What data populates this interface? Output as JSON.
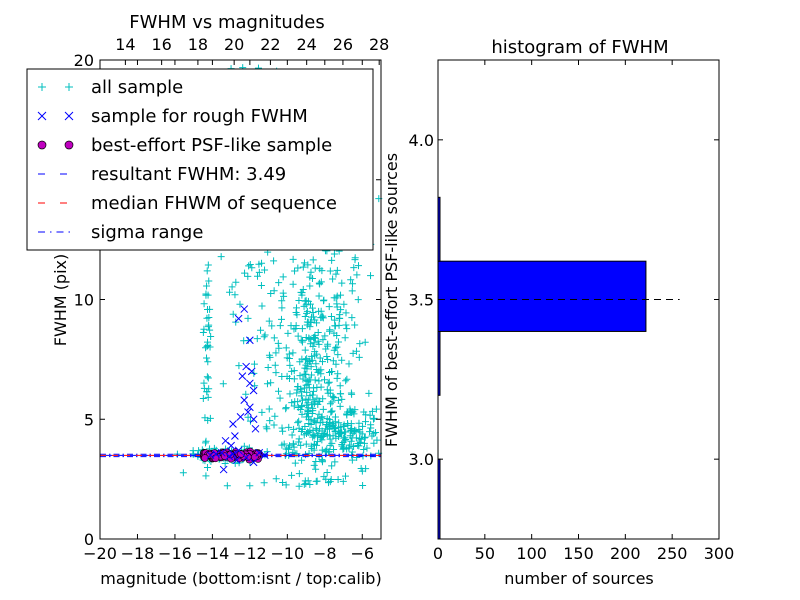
{
  "chart_data": [
    {
      "type": "scatter",
      "title": "FWHM vs magnitudes",
      "xlabel": "magnitude (bottom:isnt / top:calib)",
      "ylabel": "FWHM (pix)",
      "xlim": [
        -20,
        -5
      ],
      "ylim": [
        0,
        20
      ],
      "xticks": [
        -20,
        -18,
        -16,
        -14,
        -12,
        -10,
        -8,
        -6
      ],
      "xtick_labels": [
        "−20",
        "−18",
        "−16",
        "−14",
        "−12",
        "−10",
        "−8",
        "−6"
      ],
      "yticks": [
        0,
        5,
        10,
        15,
        20
      ],
      "ytick_labels": [
        "0",
        "5",
        "10",
        "15",
        "20"
      ],
      "top_xlim": [
        12.6,
        28.1
      ],
      "top_xticks": [
        14,
        16,
        18,
        20,
        22,
        24,
        26,
        28
      ],
      "top_xtick_labels": [
        "14",
        "16",
        "18",
        "20",
        "22",
        "24",
        "26",
        "28"
      ],
      "legend_position": "top-left",
      "legend": [
        {
          "label": "all sample",
          "marker": "plus",
          "color": "#00bfbf"
        },
        {
          "label": "sample for rough FWHM",
          "marker": "x",
          "color": "#0000ff"
        },
        {
          "label": "best-effort PSF-like sample",
          "marker": "circle",
          "color": "#bf00bf"
        },
        {
          "label": "resultant FWHM: 3.49",
          "marker": "dashed",
          "color": "#0000ff"
        },
        {
          "label": "median FHWM of sequence",
          "marker": "dashed",
          "color": "#ff0000"
        },
        {
          "label": "sigma range",
          "marker": "dashdot",
          "color": "#0000ff"
        }
      ],
      "lines": {
        "resultant_fwhm": 3.49,
        "median_fwhm": 3.49,
        "sigma_range": [
          3.44,
          3.54
        ]
      },
      "series": {
        "all_sample_clusters": [
          {
            "x_center": -8.7,
            "x_sd": 1.1,
            "y_center": 6.8,
            "y_sd": 2.6,
            "count": 320
          },
          {
            "x_center": -8.3,
            "x_sd": 1.3,
            "y_center": 11.5,
            "y_sd": 3.5,
            "count": 130
          },
          {
            "x_center": -7.2,
            "x_sd": 1.2,
            "y_center": 4.4,
            "y_sd": 0.7,
            "count": 170
          },
          {
            "x_center": -13.3,
            "x_sd": 0.9,
            "y_center": 3.5,
            "y_sd": 0.12,
            "count": 140
          },
          {
            "x_center": -14.3,
            "x_sd": 0.1,
            "y_center": 7.0,
            "y_sd": 2.4,
            "count": 40
          },
          {
            "x_center": -12.0,
            "x_sd": 1.1,
            "y_center": 10.0,
            "y_sd": 4.0,
            "count": 70
          },
          {
            "x_center": -12.5,
            "x_sd": 1.6,
            "y_center": 15.5,
            "y_sd": 3.0,
            "count": 40
          }
        ],
        "rough_fwhm_sample": [
          {
            "x": -12.2,
            "y": 7.2
          },
          {
            "x": -11.9,
            "y": 7.0
          },
          {
            "x": -12.4,
            "y": 6.8
          },
          {
            "x": -12.0,
            "y": 6.5
          },
          {
            "x": -11.8,
            "y": 6.2
          },
          {
            "x": -12.3,
            "y": 5.8
          },
          {
            "x": -12.0,
            "y": 5.5
          },
          {
            "x": -12.1,
            "y": 5.3
          },
          {
            "x": -12.5,
            "y": 5.1
          },
          {
            "x": -11.8,
            "y": 5.0
          },
          {
            "x": -12.9,
            "y": 4.8
          },
          {
            "x": -11.7,
            "y": 4.6
          },
          {
            "x": -12.8,
            "y": 4.3
          },
          {
            "x": -13.3,
            "y": 4.1
          },
          {
            "x": -13.0,
            "y": 3.9
          },
          {
            "x": -12.6,
            "y": 3.7
          },
          {
            "x": -13.5,
            "y": 3.6
          },
          {
            "x": -13.8,
            "y": 3.55
          },
          {
            "x": -13.1,
            "y": 3.45
          },
          {
            "x": -12.7,
            "y": 3.3
          },
          {
            "x": -13.4,
            "y": 2.9
          },
          {
            "x": -11.8,
            "y": 3.2
          },
          {
            "x": -12.2,
            "y": 3.4
          },
          {
            "x": -14.1,
            "y": 3.5
          },
          {
            "x": -11.2,
            "y": 3.5
          },
          {
            "x": -11.5,
            "y": 3.6
          },
          {
            "x": -12.9,
            "y": 3.55
          },
          {
            "x": -12.0,
            "y": 8.3
          },
          {
            "x": -12.3,
            "y": 9.6
          },
          {
            "x": -12.6,
            "y": 9.2
          }
        ],
        "psf_like_sample": {
          "x_range": [
            -14.6,
            -11.4
          ],
          "y": 3.5,
          "y_spread": 0.07,
          "count": 75
        }
      }
    },
    {
      "type": "bar",
      "orientation": "horizontal",
      "title": "histogram of FWHM",
      "xlabel": "number of sources",
      "ylabel": "FWHM of best-effort PSF-like sources",
      "xlim": [
        0,
        300
      ],
      "ylim": [
        2.75,
        4.25
      ],
      "xticks": [
        0,
        50,
        100,
        150,
        200,
        250,
        300
      ],
      "xtick_labels": [
        "0",
        "50",
        "100",
        "150",
        "200",
        "250",
        "300"
      ],
      "yticks": [
        3.0,
        3.5,
        4.0
      ],
      "ytick_labels": [
        "3.0",
        "3.5",
        "4.0"
      ],
      "bins": [
        {
          "from": 2.75,
          "to": 3.0,
          "count": 1
        },
        {
          "from": 3.0,
          "to": 3.2,
          "count": 0
        },
        {
          "from": 3.2,
          "to": 3.4,
          "count": 2
        },
        {
          "from": 3.4,
          "to": 3.62,
          "count": 222
        },
        {
          "from": 3.62,
          "to": 3.82,
          "count": 1
        },
        {
          "from": 3.82,
          "to": 4.25,
          "count": 0
        }
      ],
      "reference_line": {
        "y": 3.5,
        "x_range": [
          0,
          258
        ]
      },
      "bar_color": "#0000ff"
    }
  ]
}
